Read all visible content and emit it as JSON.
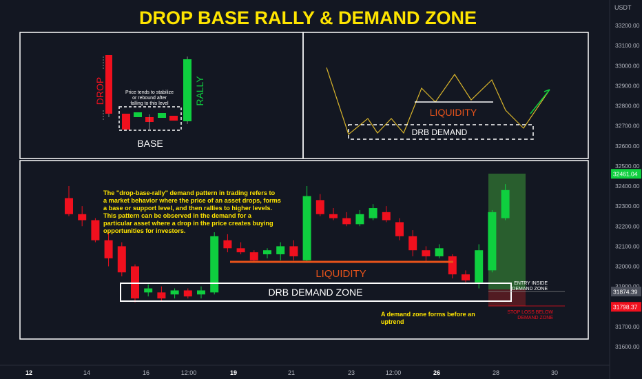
{
  "title": "DROP BASE RALLY & DEMAND ZONE",
  "currency": "USDT",
  "colors": {
    "background": "#131722",
    "up": "#0fcf3f",
    "down": "#f0101e",
    "title": "#ffe500",
    "note": "#ffe500",
    "liquidity": "#e8531b",
    "white": "#ffffff",
    "axis_text": "#b2b5be",
    "green_zone": "#2e6b30",
    "red_zone": "#5a1c22"
  },
  "y_axis": {
    "ticks": [
      "33200.00",
      "33100.00",
      "33000.00",
      "32900.00",
      "32800.00",
      "32700.00",
      "32600.00",
      "32500.00",
      "32400.00",
      "32300.00",
      "32200.00",
      "32100.00",
      "32000.00",
      "31900.00",
      "31700.00",
      "31600.00"
    ],
    "tick_values": [
      33200,
      33100,
      33000,
      32900,
      32800,
      32700,
      32600,
      32500,
      32400,
      32300,
      32200,
      32100,
      32000,
      31900,
      31700,
      31600
    ],
    "badges": [
      {
        "text": "32461.04",
        "value": 32461.04,
        "color": "#0fcf3f"
      },
      {
        "text": "31874.39",
        "value": 31874.39,
        "color": "#4a4e5a"
      },
      {
        "text": "31798.37",
        "value": 31798.37,
        "color": "#f0101e"
      }
    ]
  },
  "x_axis": {
    "labels": [
      "12",
      "14",
      "16",
      "12:00",
      "19",
      "21",
      "23",
      "12:00",
      "26",
      "28",
      "30"
    ],
    "bold": [
      "12",
      "19",
      "26"
    ]
  },
  "top_left_panel": {
    "drop_label": "DROP",
    "rally_label": "RALLY",
    "base_label": "BASE",
    "note": [
      "Price tends to stabilize",
      "or rebound after",
      "falling to this level"
    ]
  },
  "top_right_panel": {
    "liquidity_label": "LIQUIDITY",
    "demand_label": "DRB DEMAND"
  },
  "main_panel": {
    "description": [
      "The \"drop-base-rally\" demand pattern in trading refers to",
      "a market behavior where the price of an asset drops, forms",
      "a base or support level, and then rallies to higher levels.",
      "This pattern can be observed in the demand for a",
      "particular asset where a drop in the price creates buying",
      "opportunities for investors."
    ],
    "liquidity_label": "LIQUIDITY",
    "demand_zone_label": "DRB DEMAND ZONE",
    "entry_note": [
      "ENTRY INSIDE",
      "DEMAND ZONE"
    ],
    "stop_note": [
      "STOP LOSS BELOW",
      "DEMAND ZONE"
    ],
    "uptrend_note": [
      "A demand zone forms before an",
      "uptrend"
    ]
  },
  "chart_data": {
    "type": "candlestick",
    "title": "DROP BASE RALLY & DEMAND ZONE",
    "y_unit": "USDT",
    "ylim": [
      31550,
      33280
    ],
    "candles": [
      {
        "o": 32340,
        "h": 32400,
        "l": 32250,
        "c": 32260
      },
      {
        "o": 32260,
        "h": 32300,
        "l": 32200,
        "c": 32230
      },
      {
        "o": 32230,
        "h": 32240,
        "l": 32120,
        "c": 32130
      },
      {
        "o": 32130,
        "h": 32170,
        "l": 32000,
        "c": 32040
      },
      {
        "o": 32100,
        "h": 32120,
        "l": 31950,
        "c": 31970
      },
      {
        "o": 32000,
        "h": 32010,
        "l": 31820,
        "c": 31840
      },
      {
        "o": 31870,
        "h": 31910,
        "l": 31850,
        "c": 31890
      },
      {
        "o": 31870,
        "h": 31900,
        "l": 31830,
        "c": 31840
      },
      {
        "o": 31860,
        "h": 31890,
        "l": 31840,
        "c": 31880
      },
      {
        "o": 31880,
        "h": 31890,
        "l": 31840,
        "c": 31850
      },
      {
        "o": 31860,
        "h": 31900,
        "l": 31840,
        "c": 31880
      },
      {
        "o": 31870,
        "h": 32170,
        "l": 31860,
        "c": 32150
      },
      {
        "o": 32130,
        "h": 32160,
        "l": 32070,
        "c": 32090
      },
      {
        "o": 32090,
        "h": 32120,
        "l": 32060,
        "c": 32070
      },
      {
        "o": 32070,
        "h": 32080,
        "l": 32020,
        "c": 32030
      },
      {
        "o": 32060,
        "h": 32090,
        "l": 32040,
        "c": 32080
      },
      {
        "o": 32060,
        "h": 32120,
        "l": 32030,
        "c": 32100
      },
      {
        "o": 32100,
        "h": 32130,
        "l": 32030,
        "c": 32050
      },
      {
        "o": 32030,
        "h": 32400,
        "l": 32020,
        "c": 32350
      },
      {
        "o": 32330,
        "h": 32360,
        "l": 32250,
        "c": 32260
      },
      {
        "o": 32260,
        "h": 32290,
        "l": 32230,
        "c": 32240
      },
      {
        "o": 32240,
        "h": 32270,
        "l": 32200,
        "c": 32210
      },
      {
        "o": 32210,
        "h": 32280,
        "l": 32200,
        "c": 32260
      },
      {
        "o": 32240,
        "h": 32310,
        "l": 32230,
        "c": 32290
      },
      {
        "o": 32270,
        "h": 32300,
        "l": 32220,
        "c": 32230
      },
      {
        "o": 32220,
        "h": 32240,
        "l": 32130,
        "c": 32150
      },
      {
        "o": 32150,
        "h": 32180,
        "l": 32050,
        "c": 32080
      },
      {
        "o": 32080,
        "h": 32100,
        "l": 32020,
        "c": 32050
      },
      {
        "o": 32050,
        "h": 32110,
        "l": 32040,
        "c": 32090
      },
      {
        "o": 32050,
        "h": 32060,
        "l": 31940,
        "c": 31960
      },
      {
        "o": 31960,
        "h": 31980,
        "l": 31920,
        "c": 31930
      },
      {
        "o": 31920,
        "h": 32110,
        "l": 31890,
        "c": 32080
      },
      {
        "o": 31980,
        "h": 32280,
        "l": 31970,
        "c": 32270
      },
      {
        "o": 32240,
        "h": 32410,
        "l": 32230,
        "c": 32380
      }
    ],
    "levels": [
      {
        "name": "LIQUIDITY",
        "value": 32010
      },
      {
        "name": "DRB DEMAND ZONE",
        "from": 31830,
        "to": 31920
      },
      {
        "name": "ENTRY INSIDE DEMAND ZONE",
        "value": 31874.39
      },
      {
        "name": "STOP LOSS BELOW DEMAND ZONE",
        "value": 31798.37
      }
    ]
  }
}
